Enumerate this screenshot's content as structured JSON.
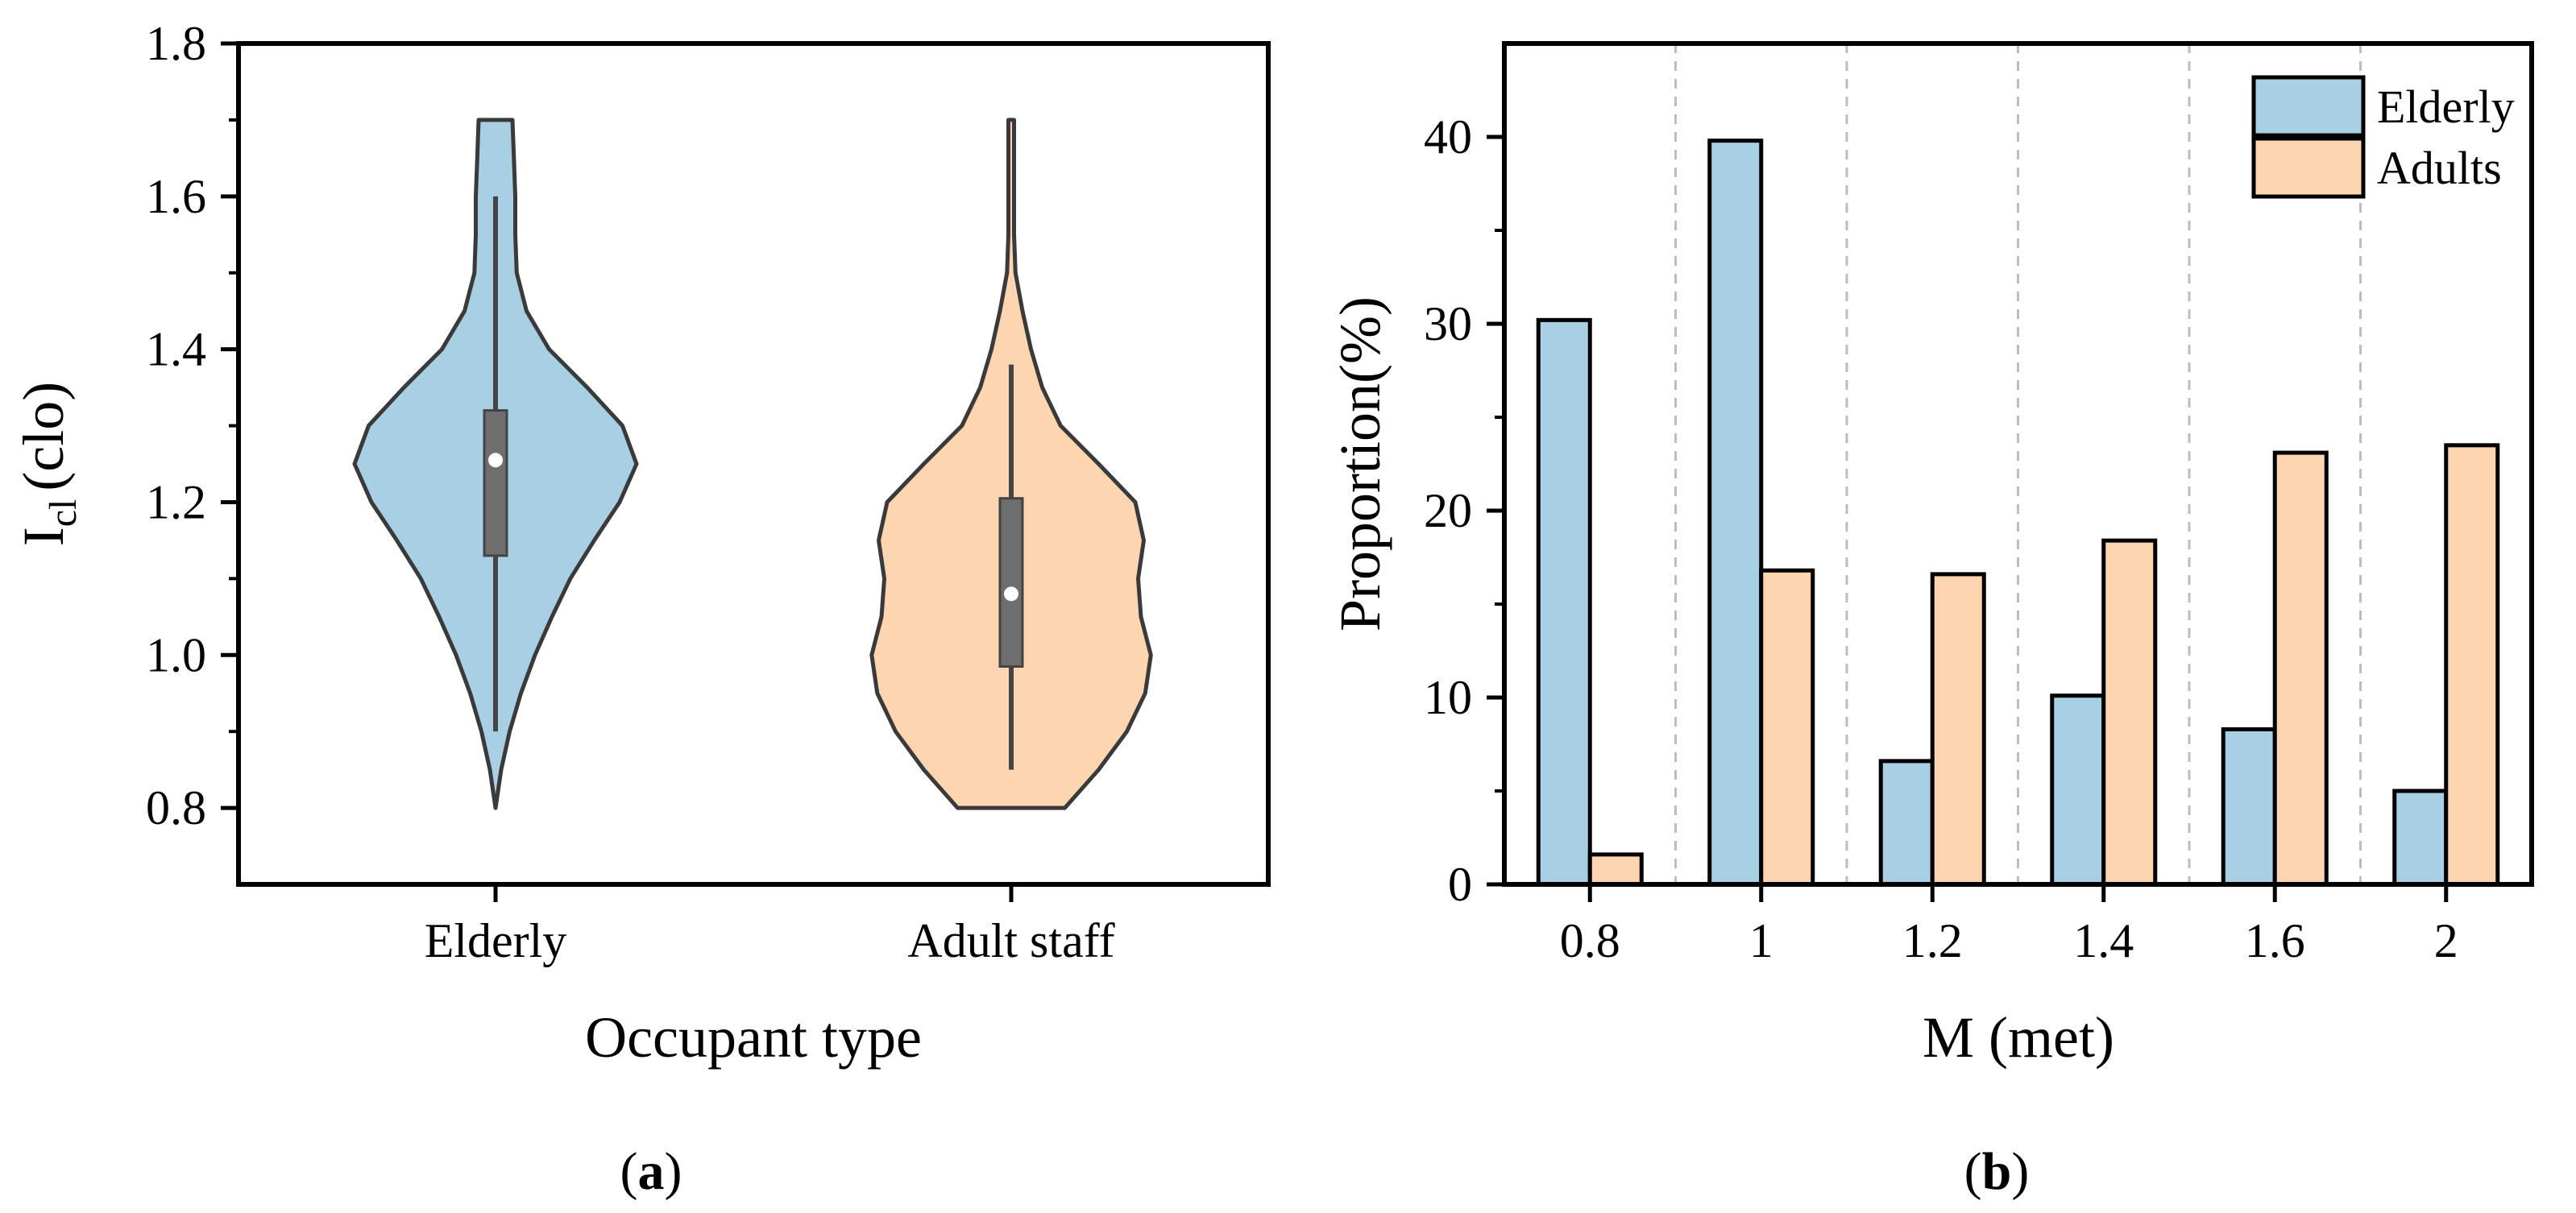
{
  "colors": {
    "elderly": "#a8cfe3",
    "adults": "#fdd5b1",
    "axis": "#000000",
    "outline": "#3a3a3a",
    "box": "#6e6e6e",
    "grid": "#bdbdbd"
  },
  "panel_a_label": "a",
  "panel_b_label": "b",
  "chart_data": [
    {
      "id": "a",
      "type": "violin",
      "xlabel": "Occupant type",
      "ylabel_main": "I",
      "ylabel_sub": "cl",
      "ylabel_unit": "(clo)",
      "ylim": [
        0.7,
        1.8
      ],
      "yticks": [
        0.8,
        1.0,
        1.2,
        1.4,
        1.6,
        1.8
      ],
      "ytick_labels": [
        "0.8",
        "1.0",
        "1.2",
        "1.4",
        "1.6",
        "1.8"
      ],
      "categories": [
        "Elderly",
        "Adult staff"
      ],
      "violins": [
        {
          "name": "Elderly",
          "color": "#a8cfe3",
          "min": 0.8,
          "max": 1.7,
          "whisker_low": 0.9,
          "whisker_high": 1.6,
          "q1": 1.13,
          "q3": 1.32,
          "median": 1.255,
          "profile": [
            [
              0.8,
              0.0
            ],
            [
              0.85,
              0.04
            ],
            [
              0.9,
              0.1
            ],
            [
              0.95,
              0.18
            ],
            [
              1.0,
              0.28
            ],
            [
              1.05,
              0.4
            ],
            [
              1.1,
              0.53
            ],
            [
              1.15,
              0.7
            ],
            [
              1.2,
              0.88
            ],
            [
              1.25,
              1.0
            ],
            [
              1.3,
              0.9
            ],
            [
              1.35,
              0.65
            ],
            [
              1.4,
              0.38
            ],
            [
              1.45,
              0.22
            ],
            [
              1.5,
              0.15
            ],
            [
              1.55,
              0.14
            ],
            [
              1.6,
              0.14
            ],
            [
              1.65,
              0.13
            ],
            [
              1.7,
              0.12
            ]
          ]
        },
        {
          "name": "Adult staff",
          "color": "#fdd5b1",
          "min": 0.8,
          "max": 1.7,
          "whisker_low": 0.85,
          "whisker_high": 1.38,
          "q1": 0.985,
          "q3": 1.205,
          "median": 1.08,
          "profile": [
            [
              0.8,
              0.38
            ],
            [
              0.85,
              0.62
            ],
            [
              0.9,
              0.82
            ],
            [
              0.95,
              0.95
            ],
            [
              1.0,
              0.99
            ],
            [
              1.05,
              0.92
            ],
            [
              1.1,
              0.9
            ],
            [
              1.15,
              0.94
            ],
            [
              1.2,
              0.88
            ],
            [
              1.25,
              0.62
            ],
            [
              1.3,
              0.35
            ],
            [
              1.35,
              0.22
            ],
            [
              1.4,
              0.14
            ],
            [
              1.45,
              0.08
            ],
            [
              1.5,
              0.03
            ],
            [
              1.55,
              0.02
            ],
            [
              1.6,
              0.02
            ],
            [
              1.65,
              0.02
            ],
            [
              1.7,
              0.02
            ]
          ]
        }
      ]
    },
    {
      "id": "b",
      "type": "bar",
      "xlabel": "M (met)",
      "ylabel": "Proportion(%)",
      "ylim": [
        0,
        45
      ],
      "yticks": [
        0,
        10,
        20,
        30,
        40
      ],
      "ytick_labels": [
        "0",
        "10",
        "20",
        "30",
        "40"
      ],
      "categories": [
        "0.8",
        "1",
        "1.2",
        "1.4",
        "1.6",
        "2"
      ],
      "series": [
        {
          "name": "Elderly",
          "color": "#a8cfe3",
          "values": [
            30.2,
            39.8,
            6.6,
            10.1,
            8.3,
            5.0
          ]
        },
        {
          "name": "Adults",
          "color": "#fdd5b1",
          "values": [
            1.6,
            16.8,
            16.6,
            18.4,
            23.1,
            23.5
          ]
        }
      ],
      "legend_position": "top-right",
      "grid": "vertical dashed separators"
    }
  ]
}
